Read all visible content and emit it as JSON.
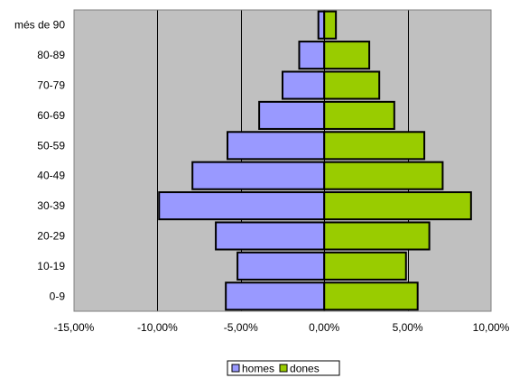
{
  "chart_data": {
    "type": "bar",
    "orientation": "horizontal",
    "categories": [
      "0-9",
      "10-19",
      "20-29",
      "30-39",
      "40-49",
      "50-59",
      "60-69",
      "70-79",
      "80-89",
      "més de 90"
    ],
    "series": [
      {
        "name": "homes",
        "color": "#9999ff",
        "values": [
          -5.9,
          -5.2,
          -6.5,
          -9.9,
          -7.9,
          -5.8,
          -3.9,
          -2.5,
          -1.5,
          -0.35
        ]
      },
      {
        "name": "dones",
        "color": "#99cc00",
        "values": [
          5.6,
          4.9,
          6.3,
          8.8,
          7.1,
          6.0,
          4.2,
          3.3,
          2.7,
          0.7
        ]
      }
    ],
    "xlim": [
      -15,
      10
    ],
    "xticks": [
      -15,
      -10,
      -5,
      0,
      5,
      10
    ],
    "xtick_labels": [
      "-15,00%",
      "-10,00%",
      "-5,00%",
      "0,00%",
      "5,00%",
      "10,00%"
    ],
    "plot_background": "#c0c0c0",
    "grid": "vertical",
    "legend": "bottom"
  }
}
